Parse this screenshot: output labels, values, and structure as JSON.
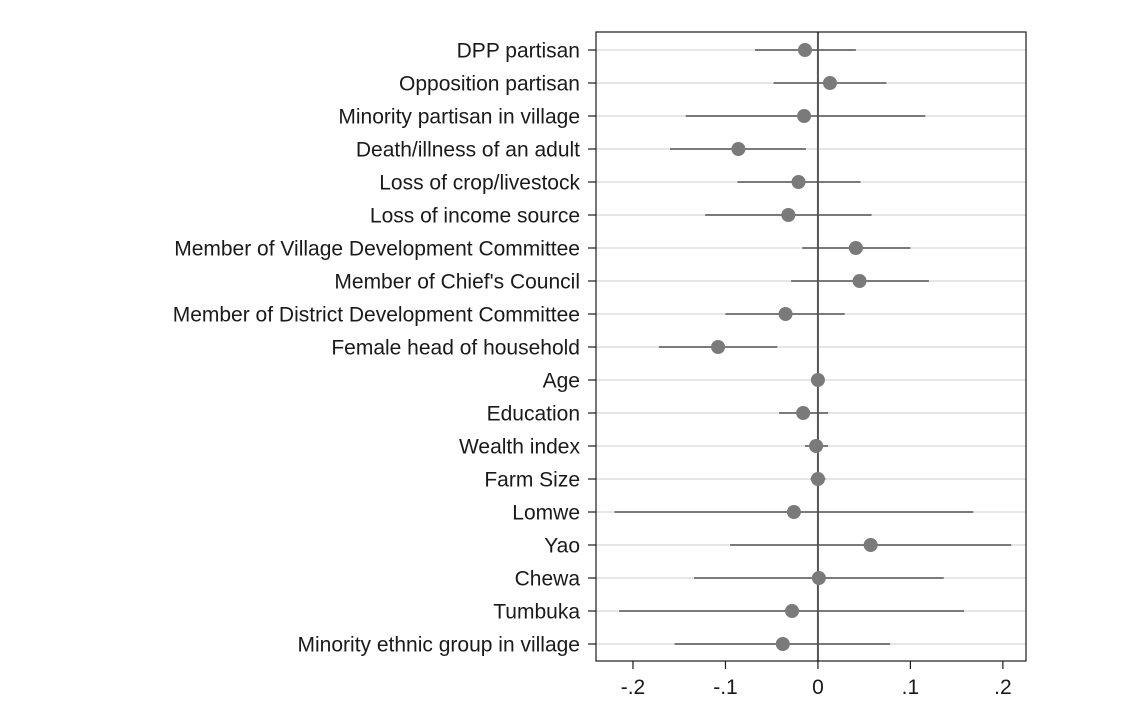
{
  "chart_data": {
    "type": "coefficient-plot",
    "title": "",
    "xlabel": "",
    "ylabel": "",
    "xlim": [
      -0.24,
      0.225
    ],
    "grid": true,
    "reference_line": 0,
    "xticks": [
      {
        "value": -0.2,
        "label": "-.2"
      },
      {
        "value": -0.1,
        "label": "-.1"
      },
      {
        "value": 0,
        "label": "0"
      },
      {
        "value": 0.1,
        "label": ".1"
      },
      {
        "value": 0.2,
        "label": ".2"
      }
    ],
    "colors": {
      "point": "#7a7a7a",
      "interval": "#7a7a7a",
      "gridline": "#e6e6e6",
      "reference": "#555555"
    },
    "series": [
      {
        "label": "DPP partisan",
        "estimate": -0.014,
        "lower": -0.068,
        "upper": 0.041
      },
      {
        "label": "Opposition partisan",
        "estimate": 0.013,
        "lower": -0.048,
        "upper": 0.074
      },
      {
        "label": "Minority partisan in village",
        "estimate": -0.015,
        "lower": -0.143,
        "upper": 0.116
      },
      {
        "label": "Death/illness of an adult",
        "estimate": -0.086,
        "lower": -0.16,
        "upper": -0.013
      },
      {
        "label": "Loss of crop/livestock",
        "estimate": -0.021,
        "lower": -0.087,
        "upper": 0.046
      },
      {
        "label": "Loss of income source",
        "estimate": -0.032,
        "lower": -0.122,
        "upper": 0.058
      },
      {
        "label": "Member of Village Development Committee",
        "estimate": 0.041,
        "lower": -0.017,
        "upper": 0.1
      },
      {
        "label": "Member of Chief's Council",
        "estimate": 0.045,
        "lower": -0.029,
        "upper": 0.12
      },
      {
        "label": "Member of District Development Committee",
        "estimate": -0.035,
        "lower": -0.1,
        "upper": 0.029
      },
      {
        "label": "Female head of household",
        "estimate": -0.108,
        "lower": -0.172,
        "upper": -0.044
      },
      {
        "label": "Age",
        "estimate": 0.0,
        "lower": -0.001,
        "upper": 0.001
      },
      {
        "label": "Education",
        "estimate": -0.016,
        "lower": -0.042,
        "upper": 0.011
      },
      {
        "label": "Wealth index",
        "estimate": -0.002,
        "lower": -0.014,
        "upper": 0.011
      },
      {
        "label": "Farm Size",
        "estimate": 0.0,
        "lower": -0.008,
        "upper": 0.008
      },
      {
        "label": "Lomwe",
        "estimate": -0.026,
        "lower": -0.22,
        "upper": 0.168
      },
      {
        "label": "Yao",
        "estimate": 0.057,
        "lower": -0.095,
        "upper": 0.209
      },
      {
        "label": "Chewa",
        "estimate": 0.001,
        "lower": -0.134,
        "upper": 0.136
      },
      {
        "label": "Tumbuka",
        "estimate": -0.028,
        "lower": -0.215,
        "upper": 0.158
      },
      {
        "label": "Minority ethnic group in village",
        "estimate": -0.038,
        "lower": -0.155,
        "upper": 0.078
      }
    ]
  }
}
